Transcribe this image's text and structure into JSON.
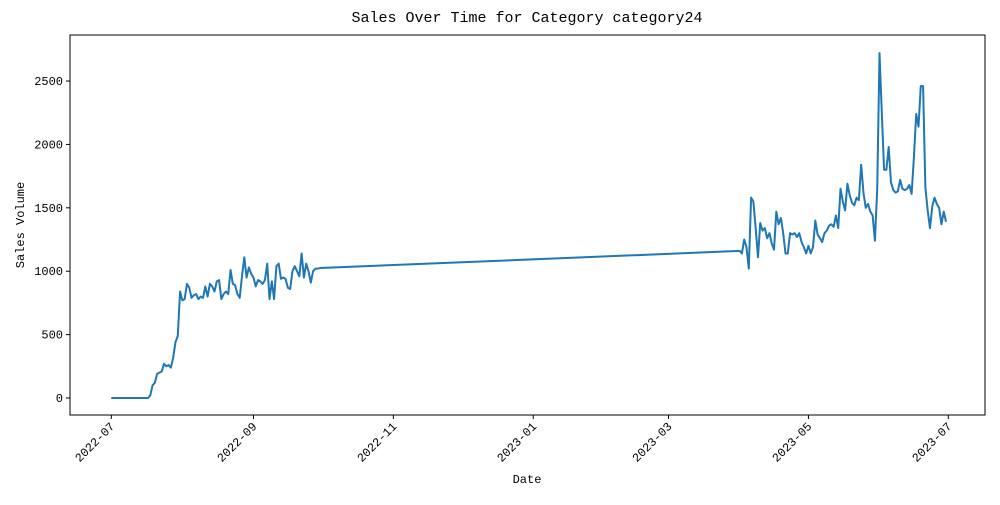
{
  "chart_data": {
    "type": "line",
    "title": "Sales Over Time for Category category24",
    "x_label": "Date",
    "y_label": "Sales Volume",
    "color": "#1f77b4",
    "x": [
      "2022-07-01",
      "2022-07-02",
      "2022-07-03",
      "2022-07-04",
      "2022-07-05",
      "2022-07-06",
      "2022-07-07",
      "2022-07-08",
      "2022-07-09",
      "2022-07-10",
      "2022-07-11",
      "2022-07-12",
      "2022-07-13",
      "2022-07-14",
      "2022-07-15",
      "2022-07-16",
      "2022-07-17",
      "2022-07-18",
      "2022-07-19",
      "2022-07-20",
      "2022-07-21",
      "2022-07-22",
      "2022-07-23",
      "2022-07-24",
      "2022-07-25",
      "2022-07-26",
      "2022-07-27",
      "2022-07-28",
      "2022-07-29",
      "2022-07-30",
      "2022-07-31",
      "2022-08-01",
      "2022-08-02",
      "2022-08-03",
      "2022-08-04",
      "2022-08-05",
      "2022-08-06",
      "2022-08-07",
      "2022-08-08",
      "2022-08-09",
      "2022-08-10",
      "2022-08-11",
      "2022-08-12",
      "2022-08-13",
      "2022-08-14",
      "2022-08-15",
      "2022-08-16",
      "2022-08-17",
      "2022-08-18",
      "2022-08-19",
      "2022-08-20",
      "2022-08-21",
      "2022-08-22",
      "2022-08-23",
      "2022-08-24",
      "2022-08-25",
      "2022-08-26",
      "2022-08-27",
      "2022-08-28",
      "2022-08-29",
      "2022-08-30",
      "2022-08-31",
      "2022-09-01",
      "2022-09-02",
      "2022-09-03",
      "2022-09-04",
      "2022-09-05",
      "2022-09-06",
      "2022-09-07",
      "2022-09-08",
      "2022-09-09",
      "2022-09-10",
      "2022-09-11",
      "2022-09-12",
      "2022-09-13",
      "2022-09-14",
      "2022-09-15",
      "2022-09-16",
      "2022-09-17",
      "2022-09-18",
      "2022-09-19",
      "2022-09-20",
      "2022-09-21",
      "2022-09-22",
      "2022-09-23",
      "2022-09-24",
      "2022-09-25",
      "2022-09-26",
      "2022-09-27",
      "2022-09-28",
      "2022-09-29",
      "2022-09-30",
      "2023-04-01",
      "2023-04-02",
      "2023-04-03",
      "2023-04-04",
      "2023-04-05",
      "2023-04-06",
      "2023-04-07",
      "2023-04-08",
      "2023-04-09",
      "2023-04-10",
      "2023-04-11",
      "2023-04-12",
      "2023-04-13",
      "2023-04-14",
      "2023-04-15",
      "2023-04-16",
      "2023-04-17",
      "2023-04-18",
      "2023-04-19",
      "2023-04-20",
      "2023-04-21",
      "2023-04-22",
      "2023-04-23",
      "2023-04-24",
      "2023-04-25",
      "2023-04-26",
      "2023-04-27",
      "2023-04-28",
      "2023-04-29",
      "2023-04-30",
      "2023-05-01",
      "2023-05-02",
      "2023-05-03",
      "2023-05-04",
      "2023-05-05",
      "2023-05-06",
      "2023-05-07",
      "2023-05-08",
      "2023-05-09",
      "2023-05-10",
      "2023-05-11",
      "2023-05-12",
      "2023-05-13",
      "2023-05-14",
      "2023-05-15",
      "2023-05-16",
      "2023-05-17",
      "2023-05-18",
      "2023-05-19",
      "2023-05-20",
      "2023-05-21",
      "2023-05-22",
      "2023-05-23",
      "2023-05-24",
      "2023-05-25",
      "2023-05-26",
      "2023-05-27",
      "2023-05-28",
      "2023-05-29",
      "2023-05-30",
      "2023-05-31",
      "2023-06-01",
      "2023-06-02",
      "2023-06-03",
      "2023-06-04",
      "2023-06-05",
      "2023-06-06",
      "2023-06-07",
      "2023-06-08",
      "2023-06-09",
      "2023-06-10",
      "2023-06-11",
      "2023-06-12",
      "2023-06-13",
      "2023-06-14",
      "2023-06-15",
      "2023-06-16",
      "2023-06-17",
      "2023-06-18",
      "2023-06-19",
      "2023-06-20",
      "2023-06-21",
      "2023-06-22",
      "2023-06-23",
      "2023-06-24",
      "2023-06-25",
      "2023-06-26",
      "2023-06-27",
      "2023-06-28",
      "2023-06-29",
      "2023-06-30"
    ],
    "values": [
      0,
      0,
      0,
      0,
      0,
      0,
      0,
      0,
      0,
      0,
      0,
      0,
      0,
      0,
      0,
      0,
      0,
      20,
      100,
      120,
      190,
      200,
      210,
      270,
      250,
      260,
      240,
      320,
      440,
      490,
      840,
      770,
      780,
      900,
      870,
      790,
      810,
      820,
      780,
      800,
      790,
      880,
      800,
      900,
      880,
      840,
      920,
      930,
      780,
      820,
      840,
      820,
      1010,
      900,
      890,
      820,
      790,
      960,
      1110,
      950,
      1030,
      980,
      950,
      880,
      930,
      920,
      900,
      930,
      1060,
      780,
      920,
      780,
      1040,
      1060,
      940,
      950,
      940,
      870,
      860,
      1000,
      1040,
      1000,
      960,
      1140,
      950,
      1060,
      1000,
      910,
      1000,
      1020,
      1020,
      1025,
      1160,
      1140,
      1250,
      1190,
      1020,
      1580,
      1550,
      1340,
      1110,
      1380,
      1320,
      1340,
      1260,
      1300,
      1220,
      1170,
      1470,
      1370,
      1420,
      1300,
      1140,
      1140,
      1300,
      1290,
      1300,
      1270,
      1300,
      1230,
      1190,
      1140,
      1200,
      1140,
      1190,
      1400,
      1290,
      1260,
      1230,
      1300,
      1320,
      1360,
      1370,
      1350,
      1440,
      1340,
      1650,
      1550,
      1480,
      1690,
      1600,
      1540,
      1520,
      1580,
      1560,
      1840,
      1620,
      1500,
      1530,
      1470,
      1440,
      1240,
      1650,
      2720,
      2250,
      1800,
      1800,
      1980,
      1700,
      1640,
      1620,
      1630,
      1720,
      1650,
      1640,
      1650,
      1680,
      1610,
      1900,
      2240,
      2140,
      2460,
      2460,
      1660,
      1480,
      1340,
      1510,
      1580,
      1530,
      1500,
      1370,
      1470,
      1390
    ],
    "xlim": [
      "2022-06-13",
      "2023-07-17"
    ],
    "xticks": [
      {
        "value": "2022-07-01",
        "label": "2022-07"
      },
      {
        "value": "2022-09-01",
        "label": "2022-09"
      },
      {
        "value": "2022-11-01",
        "label": "2022-11"
      },
      {
        "value": "2023-01-01",
        "label": "2023-01"
      },
      {
        "value": "2023-03-01",
        "label": "2023-03"
      },
      {
        "value": "2023-05-01",
        "label": "2023-05"
      },
      {
        "value": "2023-07-01",
        "label": "2023-07"
      }
    ],
    "ylim": [
      -134,
      2863
    ],
    "yticks": [
      0,
      500,
      1000,
      1500,
      2000,
      2500
    ]
  }
}
